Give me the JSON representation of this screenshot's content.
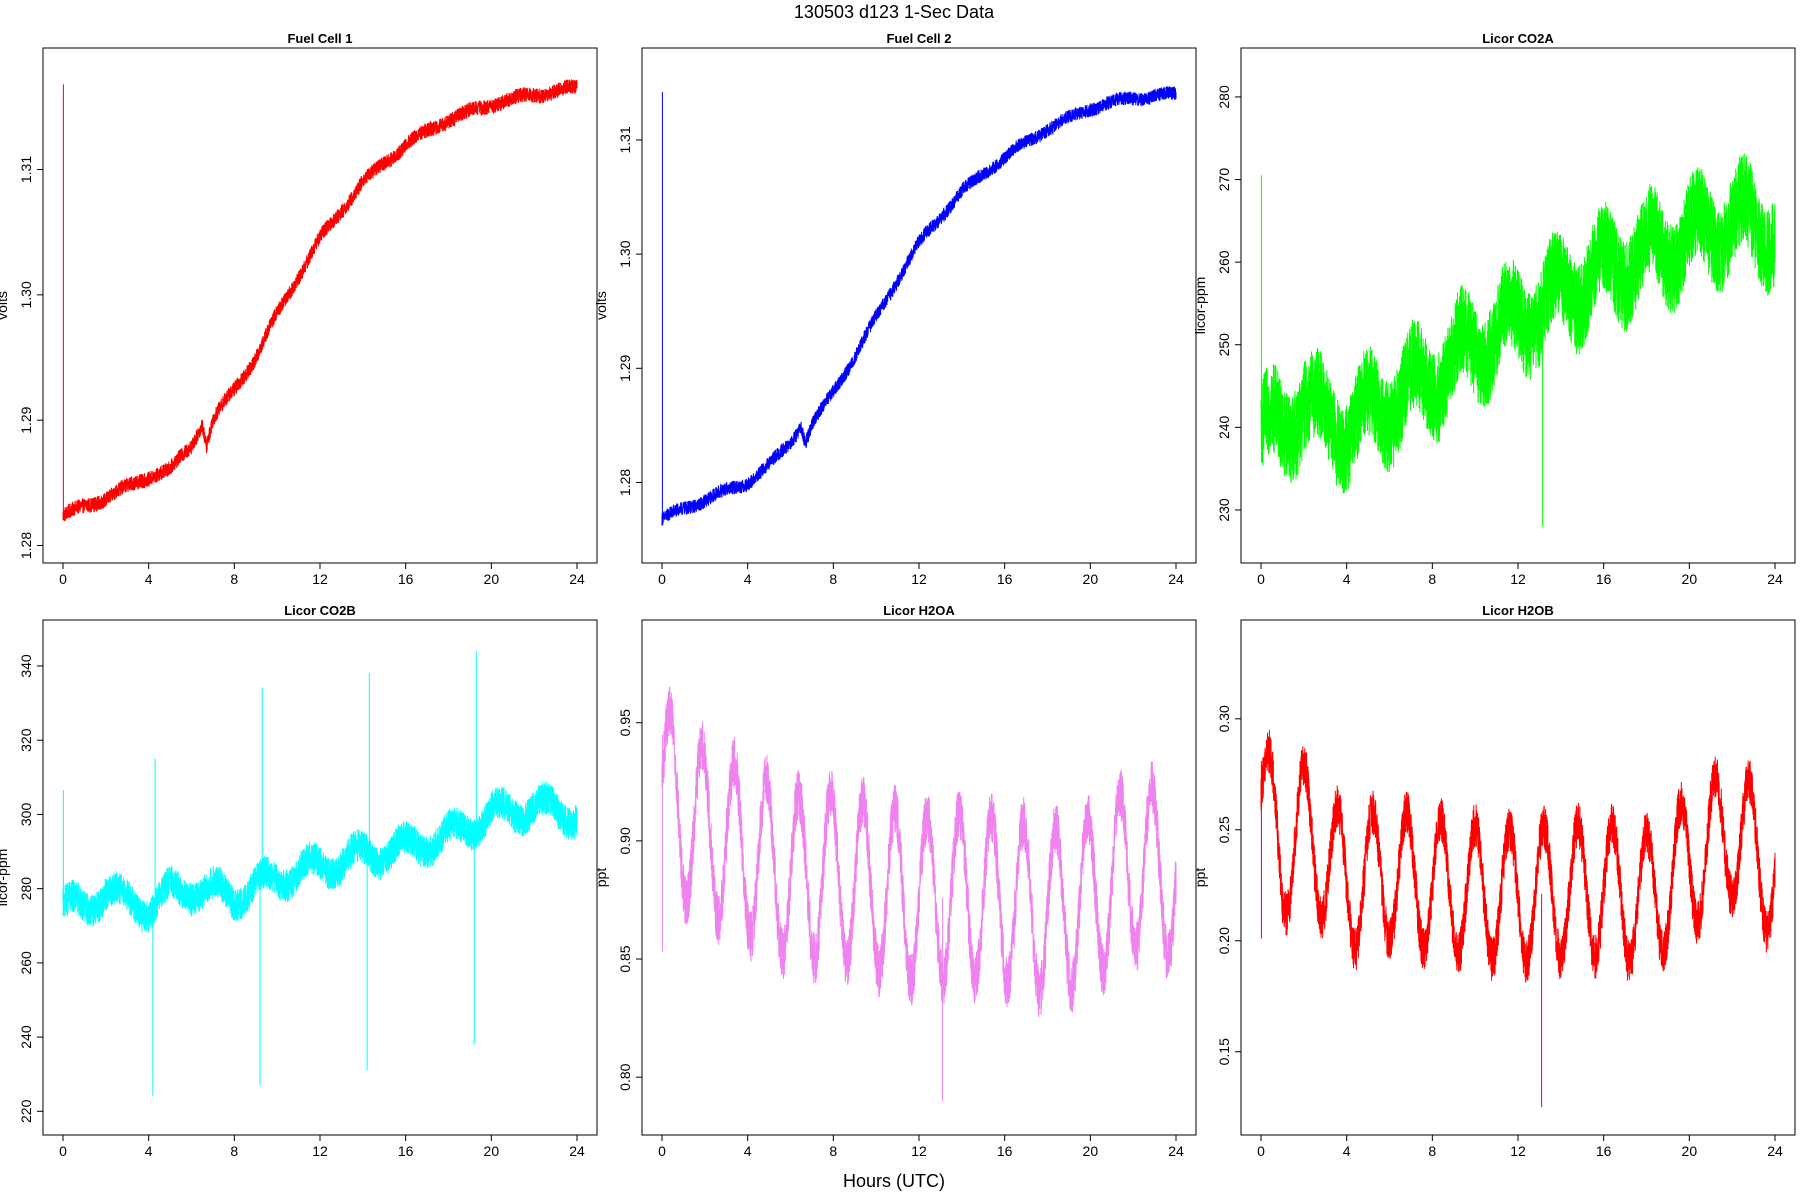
{
  "figure": {
    "title": "130503   d123   1-Sec Data",
    "xlabel": "Hours (UTC)"
  },
  "chart_data": [
    {
      "type": "line",
      "title": "Fuel Cell 1",
      "xlabel": "",
      "ylabel": "volts",
      "color": "#ff0000",
      "xlim": [
        0,
        24
      ],
      "ylim": [
        1.2802,
        1.3181
      ],
      "xticks": [
        0,
        4,
        8,
        12,
        16,
        20,
        24
      ],
      "yticks": [
        1.28,
        1.29,
        1.3,
        1.31
      ],
      "spike": {
        "x": 0.02,
        "from": 1.282,
        "to": 1.3168
      },
      "trend_x": [
        0,
        2,
        4,
        5,
        6,
        6.5,
        6.7,
        7,
        8,
        9,
        10,
        12,
        14,
        16,
        18,
        20,
        22,
        24
      ],
      "trend_y": [
        1.2824,
        1.2838,
        1.2855,
        1.286,
        1.288,
        1.2898,
        1.288,
        1.29,
        1.2925,
        1.295,
        1.2985,
        1.3045,
        1.309,
        1.312,
        1.314,
        1.3152,
        1.316,
        1.3165
      ],
      "noise": 0.0012,
      "osc_amp": 0.0002,
      "osc_period": 2.3,
      "spikes": []
    },
    {
      "type": "line",
      "title": "Fuel Cell 2",
      "xlabel": "",
      "ylabel": "volts",
      "color": "#0000ff",
      "xlim": [
        0,
        24
      ],
      "ylim": [
        1.2747,
        1.3163
      ],
      "xticks": [
        0,
        4,
        8,
        12,
        16,
        20,
        24
      ],
      "yticks": [
        1.28,
        1.29,
        1.3,
        1.31
      ],
      "spike": {
        "x": 0.02,
        "from": 1.277,
        "to": 1.3142
      },
      "trend_x": [
        0,
        2,
        4,
        5,
        6,
        6.5,
        6.7,
        7,
        8,
        9,
        10,
        12,
        14,
        16,
        18,
        20,
        22,
        24
      ],
      "trend_y": [
        1.2768,
        1.2785,
        1.28,
        1.2815,
        1.2835,
        1.285,
        1.2835,
        1.285,
        1.288,
        1.291,
        1.2945,
        1.301,
        1.3055,
        1.3085,
        1.311,
        1.3128,
        1.3137,
        1.314
      ],
      "noise": 0.0012,
      "osc_amp": 0.0002,
      "osc_period": 2.3,
      "spikes": []
    },
    {
      "type": "line",
      "title": "Licor CO2A",
      "xlabel": "",
      "ylabel": "licor-ppm",
      "color": "#00ff00",
      "xlim": [
        0,
        24
      ],
      "ylim": [
        226,
        283.5
      ],
      "xticks": [
        0,
        4,
        8,
        12,
        16,
        20,
        24
      ],
      "yticks": [
        230,
        240,
        250,
        260,
        270,
        280
      ],
      "spike": {
        "x": 0.02,
        "from": 241,
        "to": 270.5
      },
      "trend_x": [
        0,
        1,
        2,
        3,
        4,
        6,
        8,
        10,
        12,
        14,
        16,
        18,
        20,
        22,
        24
      ],
      "trend_y": [
        240,
        239,
        244,
        240,
        240,
        243,
        246,
        250,
        253,
        256,
        259,
        261,
        263,
        265,
        264
      ],
      "noise": 11,
      "osc_amp": 3,
      "osc_period": 2.2,
      "spikes": [
        {
          "x": 13.15,
          "y": 228
        }
      ]
    },
    {
      "type": "line",
      "title": "Licor CO2B",
      "xlabel": "",
      "ylabel": "licor-ppm",
      "color": "#00ffff",
      "xlim": [
        0,
        24
      ],
      "ylim": [
        219,
        347
      ],
      "xticks": [
        0,
        4,
        8,
        12,
        16,
        20,
        24
      ],
      "yticks": [
        220,
        240,
        260,
        280,
        300,
        320,
        340
      ],
      "spike": {
        "x": 0.02,
        "from": 276,
        "to": 306.5
      },
      "trend_x": [
        0,
        1,
        2,
        3,
        4,
        5,
        6,
        8,
        10,
        12,
        14,
        16,
        18,
        20,
        22,
        24
      ],
      "trend_y": [
        276,
        274,
        280,
        276,
        275,
        279,
        280,
        278,
        283,
        286,
        289,
        291,
        294,
        300,
        302,
        300
      ],
      "noise": 9,
      "osc_amp": 3,
      "osc_period": 2.2,
      "spikes": [
        {
          "x": 4.2,
          "y": 224
        },
        {
          "x": 4.3,
          "y": 315
        },
        {
          "x": 9.2,
          "y": 227
        },
        {
          "x": 9.3,
          "y": 334
        },
        {
          "x": 14.2,
          "y": 231
        },
        {
          "x": 14.3,
          "y": 338
        },
        {
          "x": 19.2,
          "y": 238
        },
        {
          "x": 19.3,
          "y": 344
        }
      ]
    },
    {
      "type": "line",
      "title": "Licor H2OA",
      "xlabel": "",
      "ylabel": "ppt",
      "color": "#ee82ee",
      "xlim": [
        0,
        24
      ],
      "ylim": [
        0.784,
        0.985
      ],
      "xticks": [
        0,
        4,
        8,
        12,
        16,
        20,
        24
      ],
      "yticks": [
        0.8,
        0.85,
        0.9,
        0.95
      ],
      "spike": {
        "x": 0.02,
        "from": 0.853,
        "to": 0.945
      },
      "trend_x": [
        0,
        1,
        2,
        4,
        6,
        8,
        10,
        12,
        14,
        16,
        18,
        20,
        22,
        24
      ],
      "trend_y": [
        0.925,
        0.91,
        0.905,
        0.895,
        0.885,
        0.885,
        0.88,
        0.875,
        0.877,
        0.875,
        0.87,
        0.875,
        0.89,
        0.885
      ],
      "noise": 0.022,
      "osc_amp": 0.035,
      "osc_period": 1.5,
      "spikes": [
        {
          "x": 13.1,
          "y": 0.79
        }
      ]
    },
    {
      "type": "line",
      "title": "Licor H2OB",
      "xlabel": "",
      "ylabel": "ppt",
      "color": "#ff0000",
      "xlim": [
        0,
        24
      ],
      "ylim": [
        0.1215,
        0.3355
      ],
      "xticks": [
        0,
        4,
        8,
        12,
        16,
        20,
        24
      ],
      "yticks": [
        0.15,
        0.2,
        0.25,
        0.3
      ],
      "spike": {
        "x": 0.02,
        "from": 0.201,
        "to": 0.281
      },
      "trend_x": [
        0,
        1,
        2,
        4,
        6,
        8,
        10,
        12,
        14,
        16,
        18,
        20,
        22,
        24
      ],
      "trend_y": [
        0.265,
        0.24,
        0.25,
        0.225,
        0.23,
        0.225,
        0.222,
        0.22,
        0.222,
        0.223,
        0.218,
        0.235,
        0.25,
        0.23
      ],
      "noise": 0.02,
      "osc_amp": 0.03,
      "osc_period": 1.6,
      "spikes": [
        {
          "x": 13.1,
          "y": 0.125
        }
      ]
    }
  ]
}
